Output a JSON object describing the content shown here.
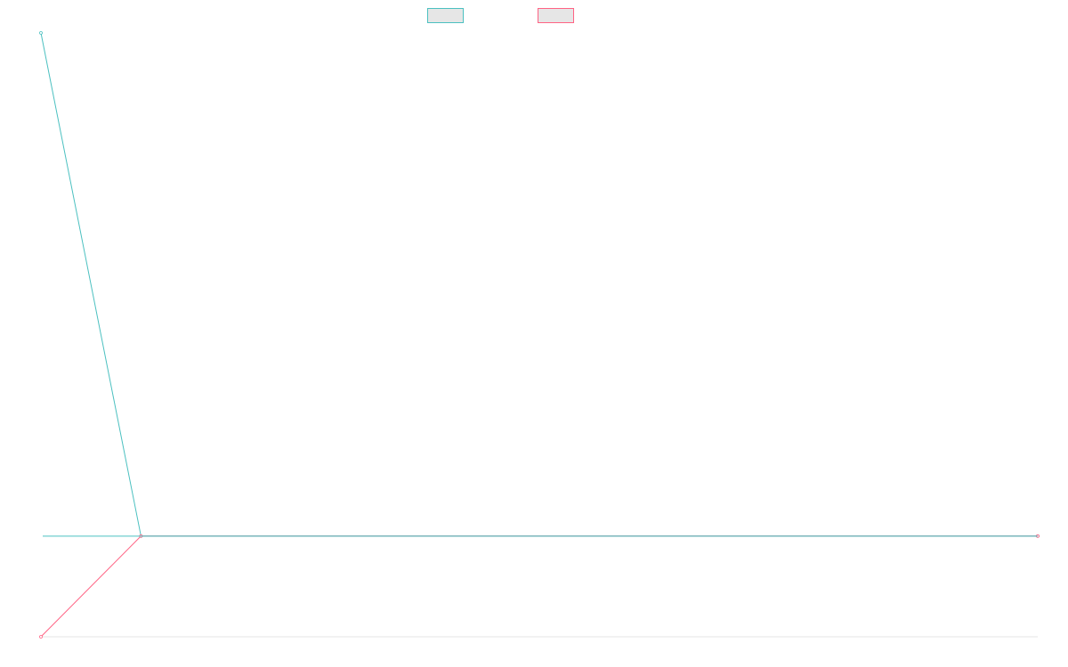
{
  "chart_data": {
    "type": "line",
    "title": "",
    "xlabel": "",
    "ylabel": "",
    "grid": false,
    "legend_position": "top-center",
    "x": [
      0,
      1,
      1000
    ],
    "ylim": [
      -0.2,
      1.0
    ],
    "series": [
      {
        "name": "",
        "color": "#4bc0c0",
        "fill": "#e6e6e6",
        "values": [
          1.0,
          0.0,
          0.0
        ]
      },
      {
        "name": "",
        "color": "#ff6384",
        "fill": "#e6e6e6",
        "values": [
          -0.2,
          0.0,
          0.0
        ]
      }
    ]
  }
}
